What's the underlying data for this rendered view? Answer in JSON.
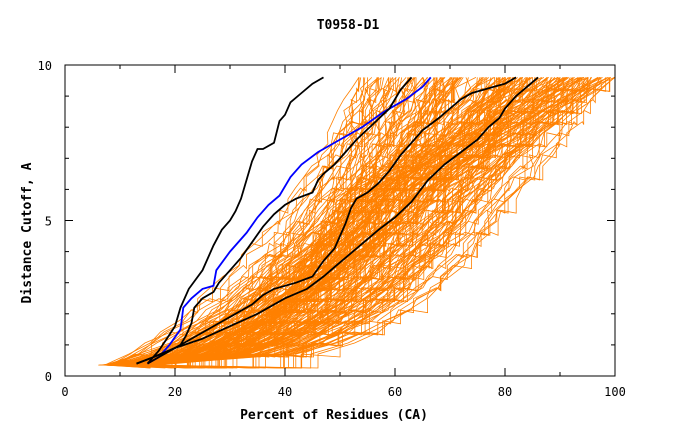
{
  "chart_data": {
    "type": "line",
    "title": "T0958-D1",
    "xlabel": "Percent of Residues (CA)",
    "ylabel": "Distance Cutoff, A",
    "xlim": [
      0,
      100
    ],
    "ylim": [
      0,
      10
    ],
    "x_ticks": [
      0,
      20,
      40,
      60,
      80,
      100
    ],
    "y_ticks": [
      0,
      5,
      10
    ],
    "x_minor_step": 10,
    "y_minor_step": 1,
    "grid": false,
    "colors": {
      "background_models": "#ff8000",
      "highlight_black": "#000000",
      "highlight_blue": "#0000ff"
    },
    "highlighted_series": [
      {
        "color": "#000000",
        "x": [
          15,
          17,
          18.5,
          20,
          21,
          22.5,
          25,
          27,
          28.5,
          30,
          31,
          32,
          33,
          34,
          35,
          36,
          38,
          39,
          40,
          41,
          43,
          45,
          47
        ],
        "y": [
          0.4,
          0.8,
          1.2,
          1.6,
          2.2,
          2.8,
          3.4,
          4.2,
          4.7,
          5.0,
          5.3,
          5.7,
          6.3,
          6.9,
          7.3,
          7.3,
          7.5,
          8.2,
          8.4,
          8.8,
          9.1,
          9.4,
          9.6
        ]
      },
      {
        "color": "#0000ff",
        "x": [
          15,
          17,
          19,
          21,
          21.5,
          23,
          25,
          27,
          27.5,
          30,
          33,
          35,
          37,
          39,
          41,
          43,
          46,
          50,
          54,
          58,
          62,
          65,
          66.5
        ],
        "y": [
          0.4,
          0.6,
          1.0,
          1.5,
          2.2,
          2.5,
          2.8,
          2.9,
          3.4,
          4.0,
          4.6,
          5.1,
          5.5,
          5.8,
          6.4,
          6.8,
          7.2,
          7.6,
          8.0,
          8.5,
          8.9,
          9.3,
          9.6
        ]
      },
      {
        "color": "#000000",
        "x": [
          15,
          17,
          19,
          21,
          22,
          23,
          23.5,
          25,
          27,
          28,
          30,
          32,
          34,
          36,
          38,
          40,
          42,
          45,
          46,
          47,
          49,
          51,
          53,
          56,
          59,
          61,
          63
        ],
        "y": [
          0.4,
          0.6,
          0.8,
          1.0,
          1.3,
          1.7,
          2.2,
          2.5,
          2.7,
          3.0,
          3.4,
          3.8,
          4.3,
          4.8,
          5.2,
          5.5,
          5.7,
          5.9,
          6.3,
          6.5,
          6.8,
          7.2,
          7.6,
          8.1,
          8.6,
          9.2,
          9.6
        ]
      },
      {
        "color": "#000000",
        "x": [
          13,
          16,
          20,
          24,
          28,
          31,
          34,
          36,
          38,
          42,
          45,
          47,
          49,
          50,
          51,
          52,
          53,
          55,
          57,
          59,
          61,
          63,
          65,
          68,
          70,
          72,
          74,
          76,
          78,
          80,
          82
        ],
        "y": [
          0.4,
          0.6,
          0.9,
          1.3,
          1.7,
          2.0,
          2.3,
          2.6,
          2.8,
          3.0,
          3.2,
          3.7,
          4.1,
          4.5,
          4.9,
          5.4,
          5.7,
          5.9,
          6.2,
          6.6,
          7.1,
          7.5,
          7.9,
          8.3,
          8.6,
          8.9,
          9.1,
          9.2,
          9.3,
          9.4,
          9.6
        ]
      },
      {
        "color": "#000000",
        "x": [
          13,
          16,
          20,
          25,
          30,
          35,
          40,
          44,
          47,
          49,
          51,
          53,
          55,
          57,
          60,
          63,
          66,
          69,
          72,
          75,
          77,
          79,
          80,
          81,
          82,
          84,
          86
        ],
        "y": [
          0.4,
          0.6,
          0.9,
          1.2,
          1.6,
          2.0,
          2.5,
          2.8,
          3.2,
          3.5,
          3.8,
          4.1,
          4.4,
          4.7,
          5.1,
          5.6,
          6.3,
          6.8,
          7.2,
          7.6,
          8.0,
          8.3,
          8.6,
          8.8,
          9.0,
          9.3,
          9.6
        ]
      }
    ],
    "background_series_count": 230
  }
}
